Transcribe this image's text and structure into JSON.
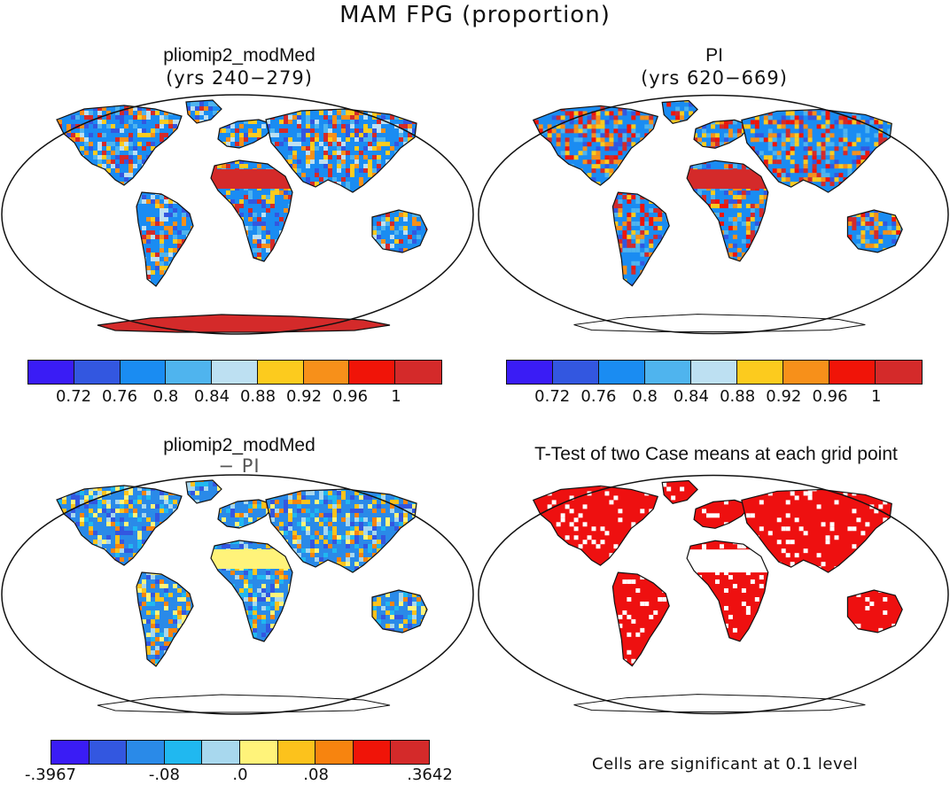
{
  "figure": {
    "title": "MAM FPG (proportion)",
    "footnote": "Cells are significant at 0.1 level"
  },
  "panels": [
    {
      "id": "model",
      "title": "pliomip2_modMed",
      "subtitle": "(yrs 240−279)",
      "colorbar": {
        "colors": [
          "#3a1cf5",
          "#3357e0",
          "#1a8cf2",
          "#4fb4ee",
          "#bde0f2",
          "#fccb1e",
          "#f7901a",
          "#f01408",
          "#d42a2a"
        ],
        "labels": [
          "0.72",
          "0.76",
          "0.8",
          "0.84",
          "0.88",
          "0.92",
          "0.96",
          "1"
        ]
      }
    },
    {
      "id": "pi",
      "title": "PI",
      "subtitle": "(yrs 620−669)",
      "colorbar": {
        "colors": [
          "#3a1cf5",
          "#3357e0",
          "#1a8cf2",
          "#4fb4ee",
          "#bde0f2",
          "#fccb1e",
          "#f7901a",
          "#f01408",
          "#d42a2a"
        ],
        "labels": [
          "0.72",
          "0.76",
          "0.8",
          "0.84",
          "0.88",
          "0.92",
          "0.96",
          "1"
        ]
      }
    },
    {
      "id": "diff",
      "title": "pliomip2_modMed",
      "subtitle": "− PI",
      "colorbar": {
        "colors": [
          "#3a1cf5",
          "#3357e0",
          "#2a8ae8",
          "#20b8f0",
          "#a8d8ee",
          "#fff37a",
          "#fcc21c",
          "#f7840f",
          "#f01408",
          "#d42a2a"
        ],
        "labels": [
          "-.3967",
          "-.08",
          ".0",
          ".08",
          ".3642"
        ]
      }
    },
    {
      "id": "ttest",
      "title": "T-Test of two Case means at each grid point",
      "significance_color": "#ee1010"
    }
  ]
}
